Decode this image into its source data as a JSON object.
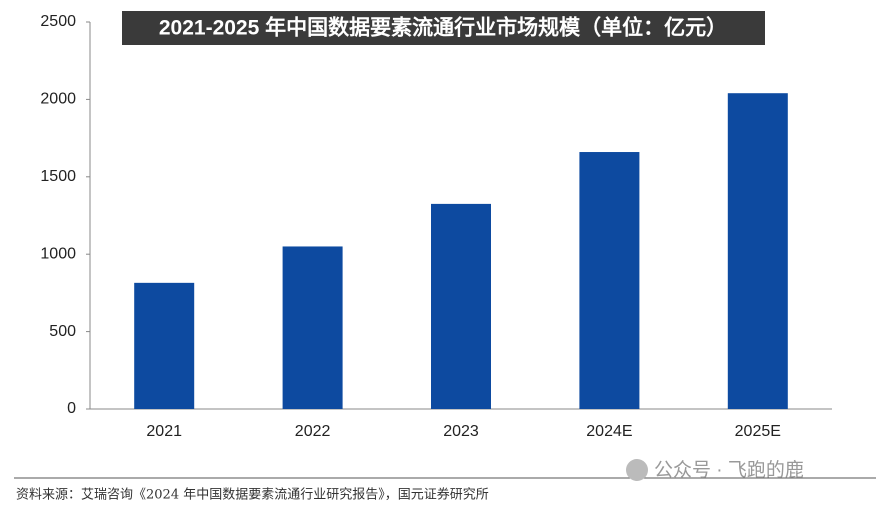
{
  "chart_data": {
    "type": "bar",
    "title": "2021-2025 年中国数据要素流通行业市场规模（单位：亿元）",
    "categories": [
      "2021",
      "2022",
      "2023",
      "2024E",
      "2025E"
    ],
    "values": [
      815,
      1050,
      1325,
      1660,
      2040
    ],
    "color": "#0d4aa0",
    "ylim": [
      0,
      2500
    ],
    "yticks": [
      0,
      500,
      1000,
      1500,
      2000,
      2500
    ],
    "grid": false
  },
  "source": "资料来源：艾瑞咨询《2024 年中国数据要素流通行业研究报告》，国元证券研究所",
  "watermark": "公众号 · 飞跑的鹿"
}
